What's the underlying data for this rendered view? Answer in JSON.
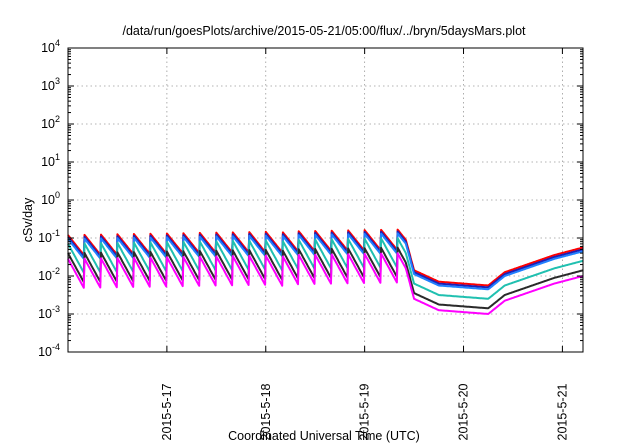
{
  "chart_data": {
    "type": "line",
    "title": "/data/run/goesPlots/archive/2015-05-21/05:00/flux/../bryn/5daysMars.plot",
    "xlabel": "Coordinated Universal Time (UTC)",
    "ylabel": "cSv/day",
    "y_scale": "log",
    "ylim_exponent": [
      -4,
      4
    ],
    "y_ticks": [
      {
        "base": "10",
        "exp": "-4"
      },
      {
        "base": "10",
        "exp": "-3"
      },
      {
        "base": "10",
        "exp": "-2"
      },
      {
        "base": "10",
        "exp": "-1"
      },
      {
        "base": "10",
        "exp": "0"
      },
      {
        "base": "10",
        "exp": "1"
      },
      {
        "base": "10",
        "exp": "2"
      },
      {
        "base": "10",
        "exp": "3"
      },
      {
        "base": "10",
        "exp": "4"
      }
    ],
    "x_range_days": [
      "2015-05-16T00:00",
      "2015-05-21T05:00"
    ],
    "x_ticks": [
      "2015-5-17",
      "2015-5-18",
      "2015-5-19",
      "2015-5-20",
      "2015-5-21"
    ],
    "grid": true,
    "legend": "none",
    "spike_period_hours": 4,
    "series_colors": [
      "#ff0000",
      "#1f1fb4",
      "#2080ff",
      "#20c0b0",
      "#2a2a2a",
      "#ff00ff"
    ],
    "series_offsets_log10": [
      0.05,
      0.0,
      -0.05,
      -0.3,
      -0.55,
      -0.7
    ],
    "reference_profile": [
      {
        "date": "2015-05-16T00:00",
        "log10": -1.25
      },
      {
        "date": "2015-05-19T10:00",
        "log10": -1.1
      },
      {
        "date": "2015-05-19T12:00",
        "log10": -1.9
      },
      {
        "date": "2015-05-19T18:00",
        "log10": -2.2
      },
      {
        "date": "2015-05-20T06:00",
        "log10": -2.3
      },
      {
        "date": "2015-05-20T10:00",
        "log10": -1.95
      },
      {
        "date": "2015-05-20T22:00",
        "log10": -1.5
      },
      {
        "date": "2015-05-21T05:00",
        "log10": -1.3
      }
    ]
  }
}
